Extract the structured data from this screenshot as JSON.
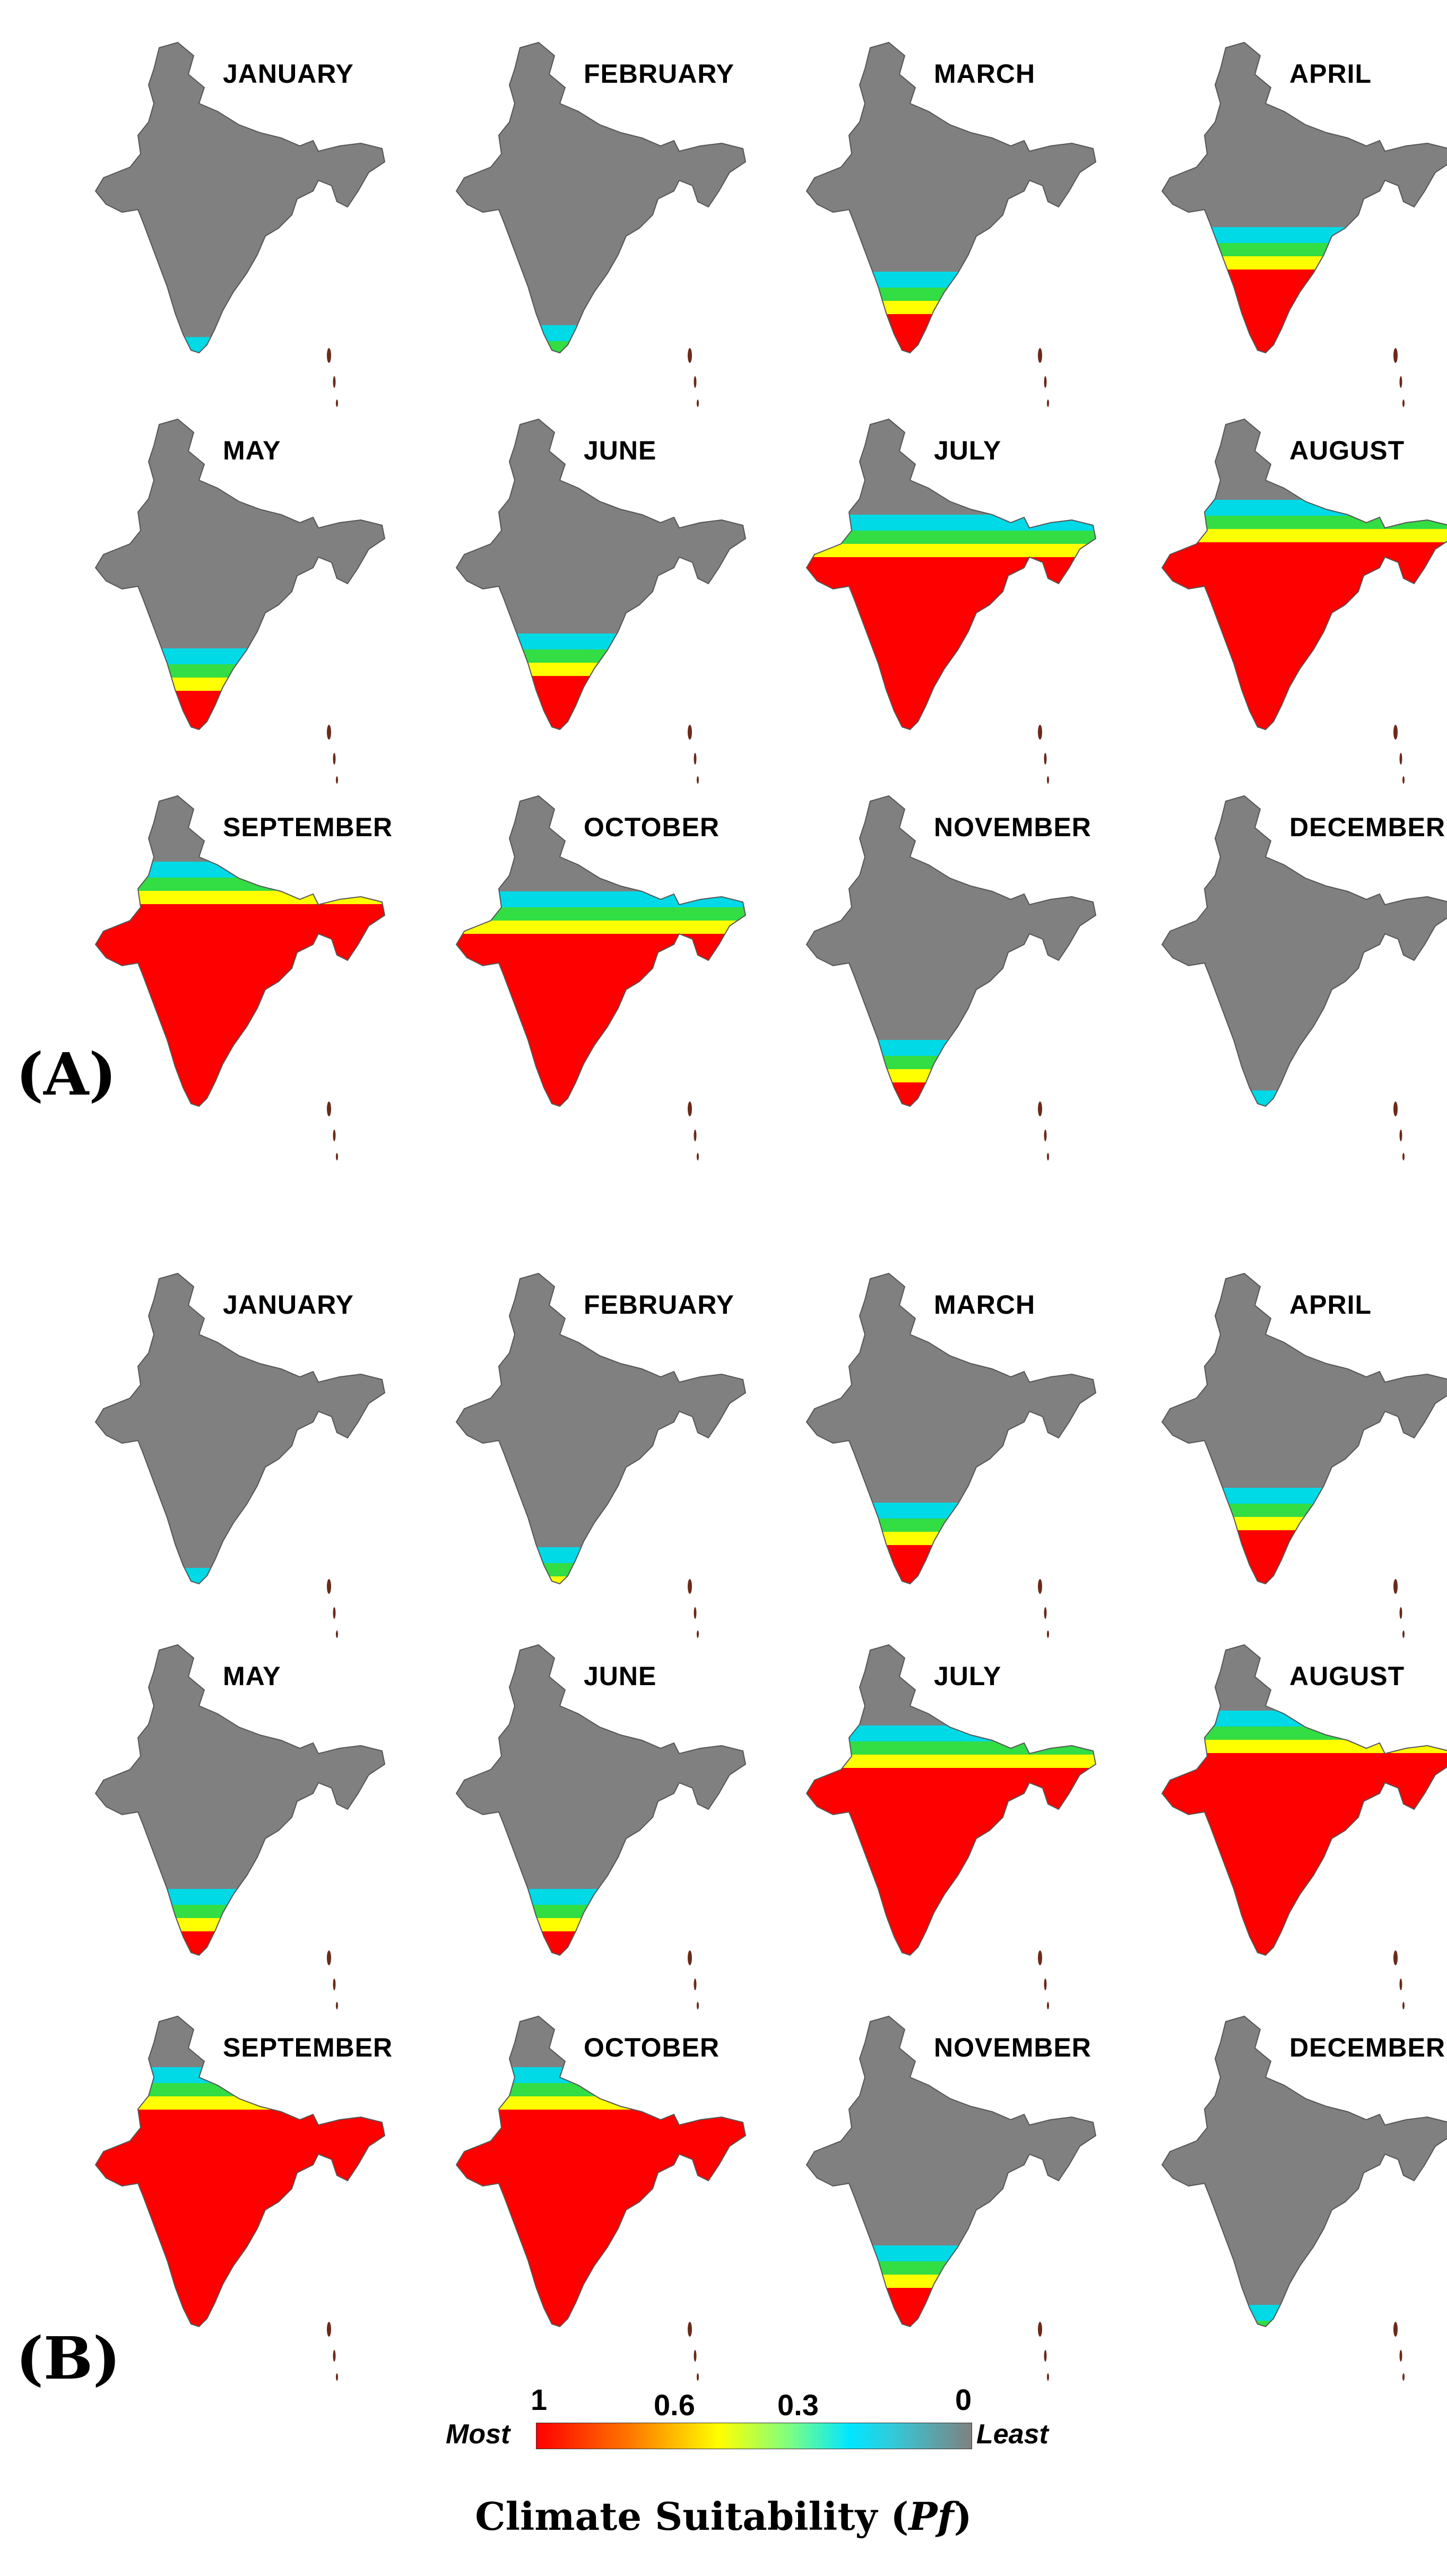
{
  "panels": [
    {
      "label": "(A)",
      "months": [
        "JANUARY",
        "FEBRUARY",
        "MARCH",
        "APRIL",
        "MAY",
        "JUNE",
        "JULY",
        "AUGUST",
        "SEPTEMBER",
        "OCTOBER",
        "NOVEMBER",
        "DECEMBER"
      ]
    },
    {
      "label": "(B)",
      "months": [
        "JANUARY",
        "FEBRUARY",
        "MARCH",
        "APRIL",
        "MAY",
        "JUNE",
        "JULY",
        "AUGUST",
        "SEPTEMBER",
        "OCTOBER",
        "NOVEMBER",
        "DECEMBER"
      ]
    }
  ],
  "legend": {
    "ticks": [
      "1",
      "0.6",
      "0.3",
      "0"
    ],
    "most": "Most",
    "least": "Least",
    "title": "Climate Suitability",
    "symbol": "Pf",
    "colors": {
      "most": "#ff0000",
      "mid_high": "#ffff00",
      "mid_low": "#00e6ff",
      "least": "#808080"
    }
  },
  "colors": {
    "land": "#808080",
    "hot": "#ff0000",
    "orange": "#ff8c00",
    "yellow": "#ffff00",
    "green": "#33dd44",
    "cyan": "#00d9e6"
  },
  "suitability_levels": {
    "A": {
      "JANUARY": 0.08,
      "FEBRUARY": 0.12,
      "MARCH": 0.3,
      "APRIL": 0.45,
      "MAY": 0.3,
      "JUNE": 0.35,
      "JULY": 0.75,
      "AUGUST": 0.8,
      "SEPTEMBER": 0.85,
      "OCTOBER": 0.75,
      "NOVEMBER": 0.25,
      "DECEMBER": 0.08
    },
    "B": {
      "JANUARY": 0.08,
      "FEBRUARY": 0.15,
      "MARCH": 0.3,
      "APRIL": 0.35,
      "MAY": 0.25,
      "JUNE": 0.25,
      "JULY": 0.8,
      "AUGUST": 0.85,
      "SEPTEMBER": 0.9,
      "OCTOBER": 0.9,
      "NOVEMBER": 0.3,
      "DECEMBER": 0.1
    }
  }
}
